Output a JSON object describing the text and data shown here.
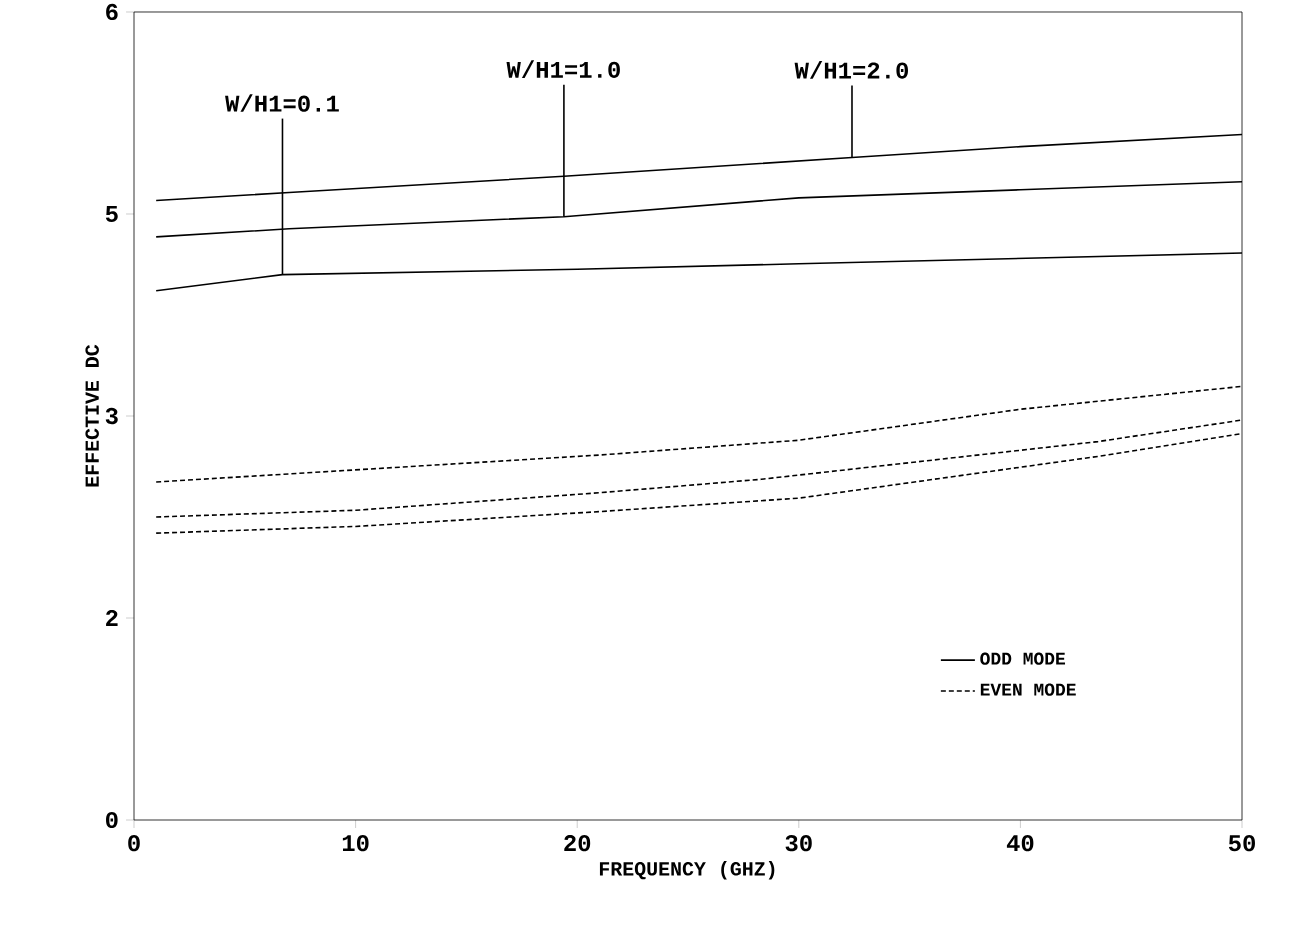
{
  "chart_data": {
    "type": "line",
    "xlabel": "FREQUENCY (GHZ)",
    "ylabel": "EFFECTIVE DC",
    "xlim": [
      0,
      50
    ],
    "xticks": [
      0,
      10,
      20,
      30,
      40,
      50
    ],
    "ylim": [
      0,
      6
    ],
    "yticks": [
      0,
      {
        "value": 1.5,
        "label": "2"
      },
      3,
      {
        "value": 4.5,
        "label": "5"
      },
      6
    ],
    "grid": false,
    "legend": "bottom right",
    "marker": "none",
    "series": [
      {
        "name": "ODD MODE",
        "color": "#000000",
        "line_style": "solid",
        "x": [
          1,
          7,
          19.4,
          32.4,
          40,
          50
        ],
        "values": [
          4.6,
          4.66,
          4.78,
          4.92,
          5.0,
          5.09
        ]
      },
      {
        "color": "#000000",
        "line_style": "solid",
        "x": [
          1,
          7,
          19.4,
          30,
          40,
          50
        ],
        "values": [
          4.33,
          4.39,
          4.48,
          4.62,
          4.68,
          4.74
        ]
      },
      {
        "color": "#000000",
        "line_style": "solid",
        "x": [
          1,
          6.7,
          20,
          30,
          50
        ],
        "values": [
          3.93,
          4.05,
          4.09,
          4.13,
          4.21
        ]
      },
      {
        "name": "EVEN MODE",
        "color": "#000000",
        "line_style": "dashed",
        "x": [
          1,
          13,
          21,
          30,
          40,
          50
        ],
        "values": [
          2.51,
          2.63,
          2.71,
          2.82,
          3.05,
          3.22
        ]
      },
      {
        "color": "#000000",
        "line_style": "dashed",
        "x": [
          1,
          10,
          21,
          28.3,
          43.5,
          50
        ],
        "values": [
          2.25,
          2.3,
          2.43,
          2.53,
          2.81,
          2.97
        ]
      },
      {
        "color": "#000000",
        "line_style": "dashed",
        "x": [
          1,
          10,
          21,
          30,
          43.5,
          50
        ],
        "values": [
          2.13,
          2.18,
          2.29,
          2.39,
          2.7,
          2.87
        ]
      }
    ],
    "annotations": [
      {
        "text": "W/H1=0.1",
        "x": 6.7,
        "y": 4.05
      },
      {
        "text": "W/H1=1.0",
        "x": 19.4,
        "y": 4.48
      },
      {
        "text": "W/H1=2.0",
        "x": 32.4,
        "y": 4.92
      }
    ]
  }
}
